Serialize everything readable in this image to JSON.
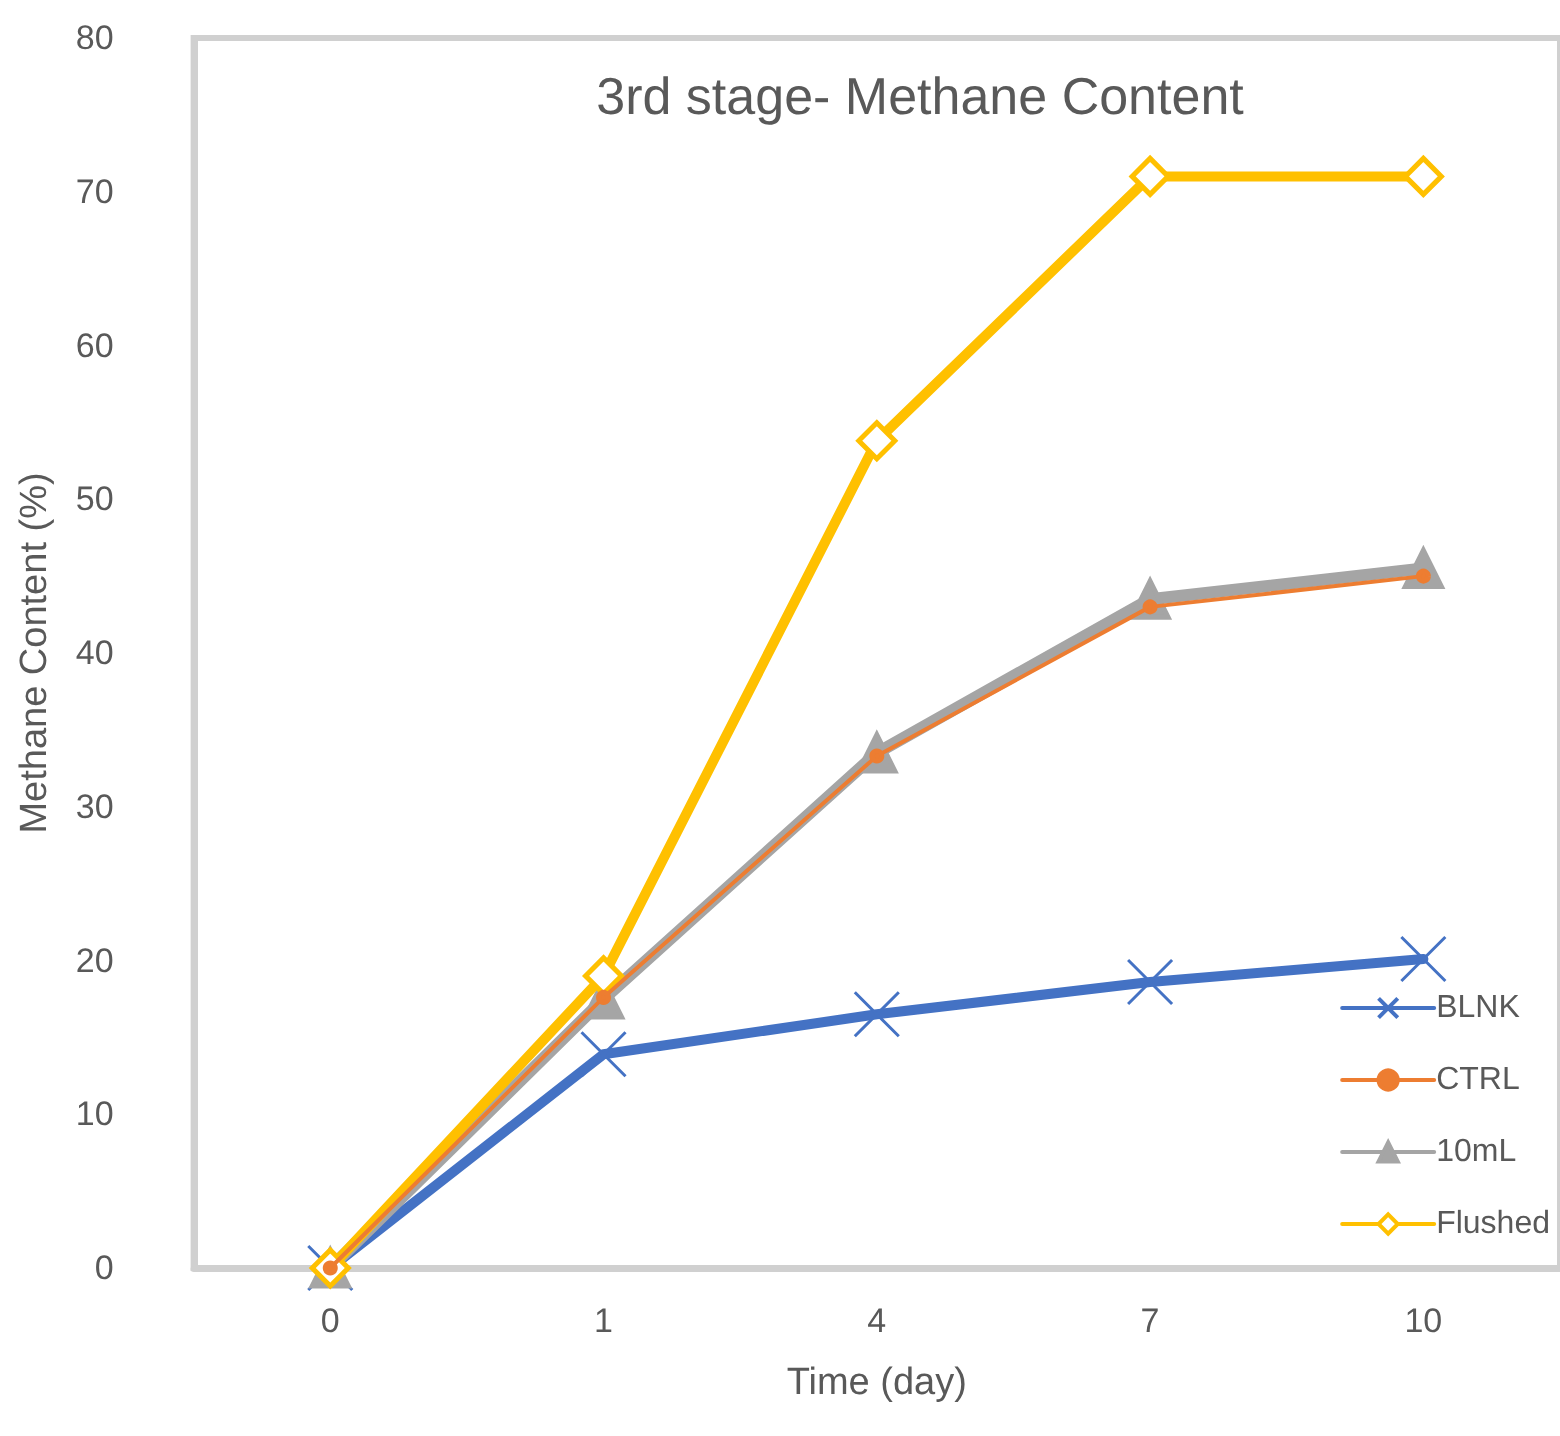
{
  "chart_data": {
    "type": "line",
    "title": "3rd stage- Methane Content",
    "xlabel": "Time (day)",
    "ylabel": "Methane Content (%)",
    "categories": [
      "0",
      "1",
      "4",
      "7",
      "10"
    ],
    "series": [
      {
        "name": "BLNK",
        "color": "#4472c4",
        "marker": "cross",
        "values": [
          0,
          13.9,
          16.5,
          18.6,
          20.1
        ]
      },
      {
        "name": "CTRL",
        "color": "#ed7d31",
        "marker": "circle",
        "values": [
          0,
          17.6,
          33.3,
          43,
          45
        ]
      },
      {
        "name": "10mL",
        "color": "#a5a5a5",
        "marker": "triangle",
        "values": [
          0,
          17.5,
          33.5,
          43.5,
          45.5
        ]
      },
      {
        "name": "Flushed",
        "color": "#ffc000",
        "marker": "diamond",
        "values": [
          0,
          19,
          53.8,
          71,
          71
        ]
      }
    ],
    "ylim": [
      0,
      80
    ],
    "yticks": [
      0,
      10,
      20,
      30,
      40,
      50,
      60,
      70,
      80
    ],
    "grid": false,
    "legend": "bottom right"
  }
}
